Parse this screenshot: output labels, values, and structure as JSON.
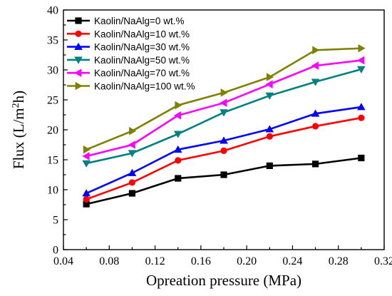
{
  "chart_data": {
    "type": "line",
    "xlabel": "Opreation pressure (MPa)",
    "ylabel": "Flux (L/m2h)",
    "ylabel_parts": {
      "pre": "Flux (L/m",
      "sup": "2",
      "post": "h)"
    },
    "xlim": [
      0.04,
      0.32
    ],
    "ylim": [
      0,
      40
    ],
    "x_ticks": [
      "0.04",
      "0.08",
      "0.12",
      "0.16",
      "0.20",
      "0.24",
      "0.28",
      "0.32"
    ],
    "y_ticks": [
      "0",
      "5",
      "10",
      "15",
      "20",
      "25",
      "30",
      "35",
      "40"
    ],
    "grid": false,
    "legend_position": "top-left",
    "x": [
      0.06,
      0.1,
      0.14,
      0.18,
      0.22,
      0.26,
      0.3
    ],
    "series": [
      {
        "name": "Kaolin/NaAlg=0 wt.%",
        "color": "#000000",
        "marker": "square",
        "values": [
          7.6,
          9.4,
          11.9,
          12.5,
          14.0,
          14.3,
          15.3
        ]
      },
      {
        "name": "Kaolin/NaAlg=10 wt.%",
        "color": "#ff0000",
        "marker": "circle",
        "values": [
          8.4,
          11.2,
          14.9,
          16.5,
          18.9,
          20.6,
          22.0
        ]
      },
      {
        "name": "Kaolin/NaAlg=30 wt.%",
        "color": "#0000ff",
        "marker": "triangle-up",
        "values": [
          9.4,
          12.8,
          16.7,
          18.2,
          20.1,
          22.7,
          23.8
        ]
      },
      {
        "name": "Kaolin/NaAlg=50 wt.%",
        "color": "#008080",
        "marker": "triangle-down",
        "values": [
          14.4,
          16.1,
          19.3,
          22.9,
          25.7,
          28.0,
          30.1
        ]
      },
      {
        "name": "Kaolin/NaAlg=70 wt.%",
        "color": "#ff00ff",
        "marker": "triangle-left",
        "values": [
          15.6,
          17.5,
          22.4,
          24.5,
          27.6,
          30.7,
          31.6
        ]
      },
      {
        "name": "Kaolin/NaAlg=100 wt.%",
        "color": "#808000",
        "marker": "triangle-right",
        "values": [
          16.7,
          19.8,
          24.1,
          26.2,
          28.8,
          33.3,
          33.6
        ]
      }
    ]
  }
}
